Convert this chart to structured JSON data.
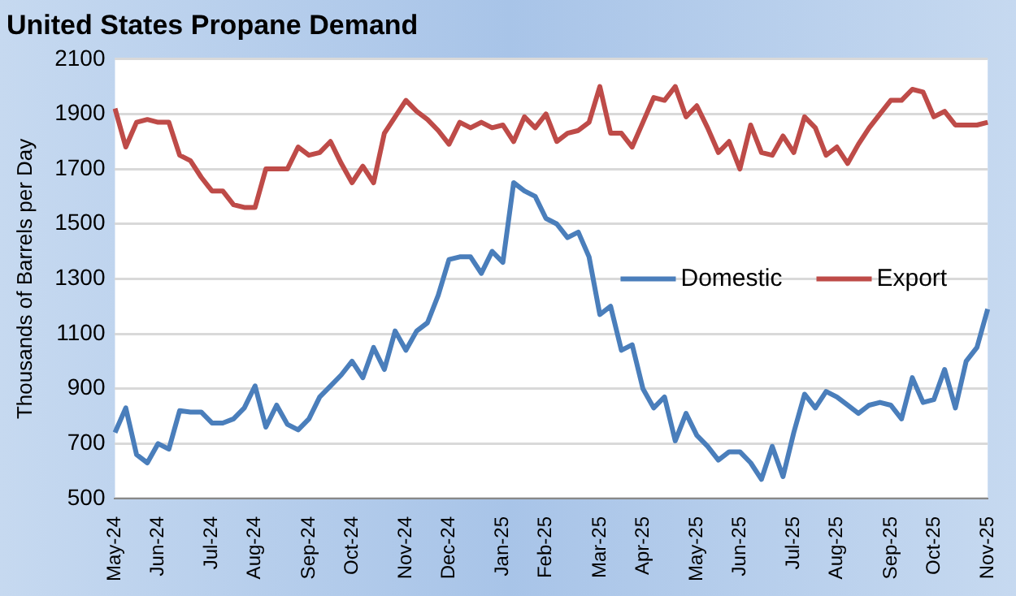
{
  "chart_data": {
    "type": "line",
    "title": "United States Propane Demand",
    "ylabel": "Thousands of Barrels per Day",
    "categories": [
      "May-24",
      null,
      null,
      null,
      "Jun-24",
      null,
      null,
      null,
      null,
      "Jul-24",
      null,
      null,
      null,
      "Aug-24",
      null,
      null,
      null,
      null,
      "Sep-24",
      null,
      null,
      null,
      "Oct-24",
      null,
      null,
      null,
      null,
      "Nov-24",
      null,
      null,
      null,
      "Dec-24",
      null,
      null,
      null,
      null,
      "Jan-25",
      null,
      null,
      null,
      "Feb-25",
      null,
      null,
      null,
      null,
      "Mar-25",
      null,
      null,
      null,
      "Apr-25",
      null,
      null,
      null,
      null,
      "May-25",
      null,
      null,
      null,
      "Jun-25",
      null,
      null,
      null,
      null,
      "Jul-25",
      null,
      null,
      null,
      "Aug-25",
      null,
      null,
      null,
      null,
      "Sep-25",
      null,
      null,
      null,
      "Oct-25",
      null,
      null,
      null,
      null,
      "Nov-25"
    ],
    "series": [
      {
        "name": "Domestic",
        "color": "#4a7ebb",
        "values": [
          740,
          830,
          660,
          630,
          700,
          680,
          820,
          815,
          815,
          775,
          775,
          790,
          830,
          910,
          760,
          840,
          770,
          750,
          790,
          870,
          910,
          950,
          1000,
          940,
          1050,
          970,
          1110,
          1040,
          1110,
          1140,
          1240,
          1370,
          1380,
          1380,
          1320,
          1400,
          1360,
          1650,
          1620,
          1600,
          1520,
          1500,
          1450,
          1470,
          1380,
          1170,
          1200,
          1040,
          1060,
          900,
          830,
          870,
          710,
          810,
          730,
          690,
          640,
          670,
          670,
          630,
          570,
          690,
          580,
          740,
          880,
          830,
          890,
          870,
          840,
          810,
          840,
          850,
          840,
          790,
          940,
          850,
          860,
          970,
          830,
          1000,
          1050,
          1190
        ]
      },
      {
        "name": "Export",
        "color": "#be4b48",
        "values": [
          1920,
          1780,
          1870,
          1880,
          1870,
          1870,
          1750,
          1730,
          1670,
          1620,
          1620,
          1570,
          1560,
          1560,
          1700,
          1700,
          1700,
          1780,
          1750,
          1760,
          1800,
          1720,
          1650,
          1710,
          1650,
          1830,
          1890,
          1950,
          1910,
          1880,
          1840,
          1790,
          1870,
          1850,
          1870,
          1850,
          1860,
          1800,
          1890,
          1850,
          1900,
          1800,
          1830,
          1840,
          1870,
          2000,
          1830,
          1830,
          1780,
          1870,
          1960,
          1950,
          2000,
          1890,
          1930,
          1850,
          1760,
          1800,
          1700,
          1860,
          1760,
          1750,
          1820,
          1760,
          1890,
          1850,
          1750,
          1780,
          1720,
          1790,
          1850,
          1900,
          1950,
          1950,
          1990,
          1980,
          1890,
          1910,
          1860,
          1860,
          1860,
          1870
        ]
      }
    ],
    "ylim": [
      500,
      2100
    ],
    "yticks": [
      500,
      700,
      900,
      1100,
      1300,
      1500,
      1700,
      1900,
      2100
    ],
    "grid": "y",
    "legend": "right",
    "marker": "none",
    "line_style": "solid"
  }
}
